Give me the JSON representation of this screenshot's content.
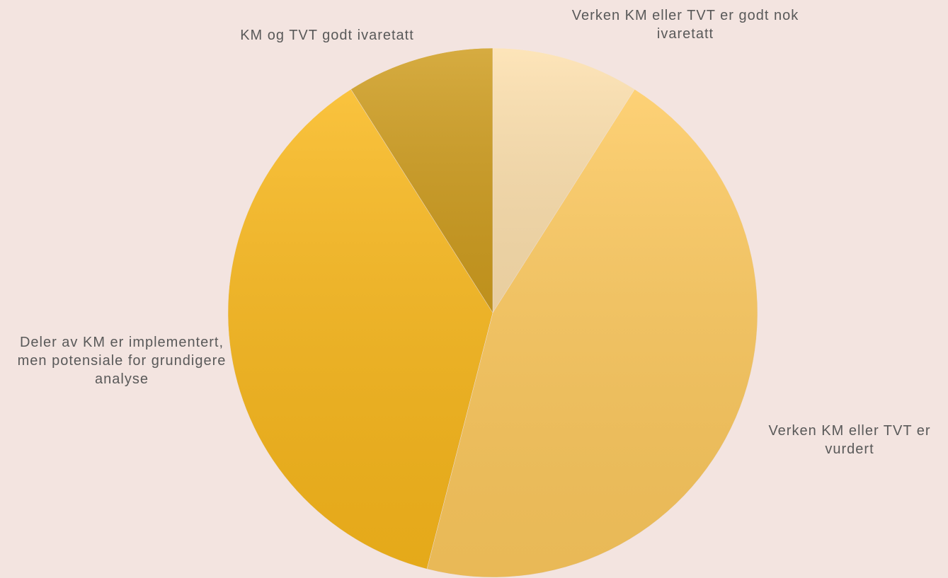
{
  "chart_data": {
    "type": "pie",
    "categories": [
      "Verken KM eller TVT er godt nok ivaretatt",
      "Verken KM eller TVT er vurdert",
      "Deler av KM er implementert, men potensiale for grundigere analyse",
      "KM og TVT godt ivaretatt"
    ],
    "values": [
      9,
      45,
      37,
      9
    ],
    "colors": [
      "#fde0ad",
      "#fdc95e",
      "#f9b81c",
      "#cf9d1f"
    ]
  }
}
